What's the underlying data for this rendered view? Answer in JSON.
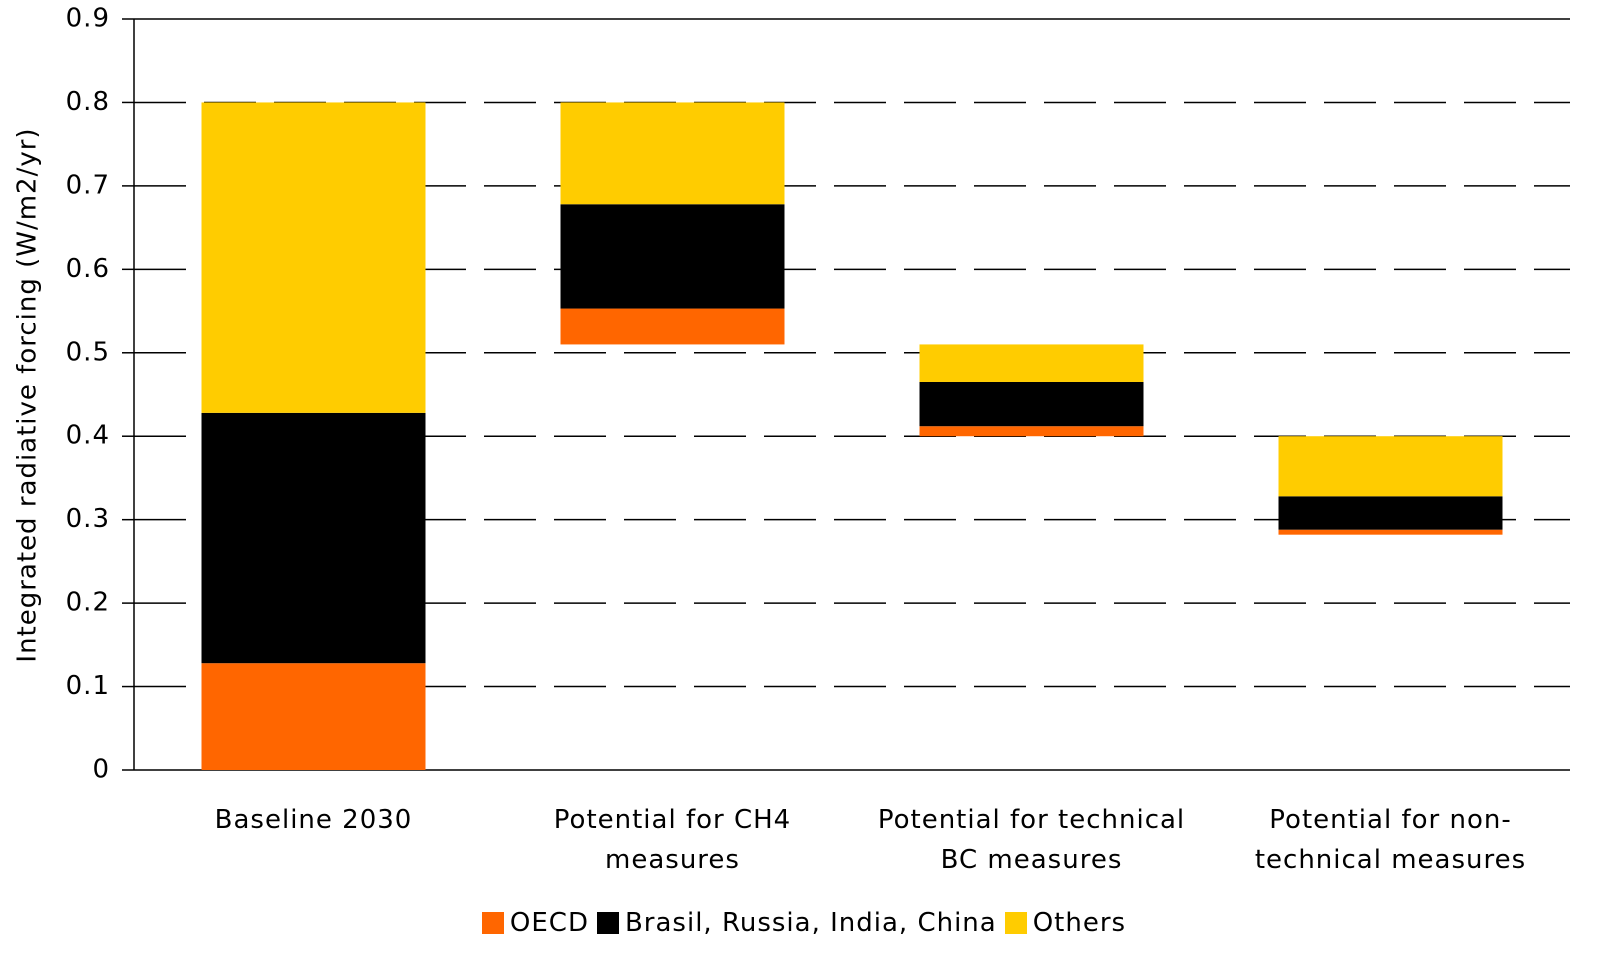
{
  "chart_data": {
    "type": "waterfall",
    "ylabel": "Integrated radiative forcing (W/m2/yr)",
    "categories": [
      "Baseline 2030",
      "Potential for CH4 measures",
      "Potential for technical BC measures",
      "Potential for non-technical measures"
    ],
    "series": [
      {
        "name": "OECD",
        "color": "#ff6600",
        "values": [
          0.128,
          0.043,
          0.012,
          0.006
        ]
      },
      {
        "name": "Brasil, Russia, India, China",
        "color": "#000000",
        "values": [
          0.3,
          0.125,
          0.053,
          0.04
        ]
      },
      {
        "name": "Others",
        "color": "#ffcc00",
        "values": [
          0.372,
          0.122,
          0.045,
          0.072
        ]
      }
    ],
    "ylim": [
      0,
      0.9
    ],
    "yticks": [
      0,
      0.1,
      0.2,
      0.3,
      0.4,
      0.5,
      0.6,
      0.7,
      0.8,
      0.9
    ],
    "grid": true,
    "legend": "bottom"
  }
}
